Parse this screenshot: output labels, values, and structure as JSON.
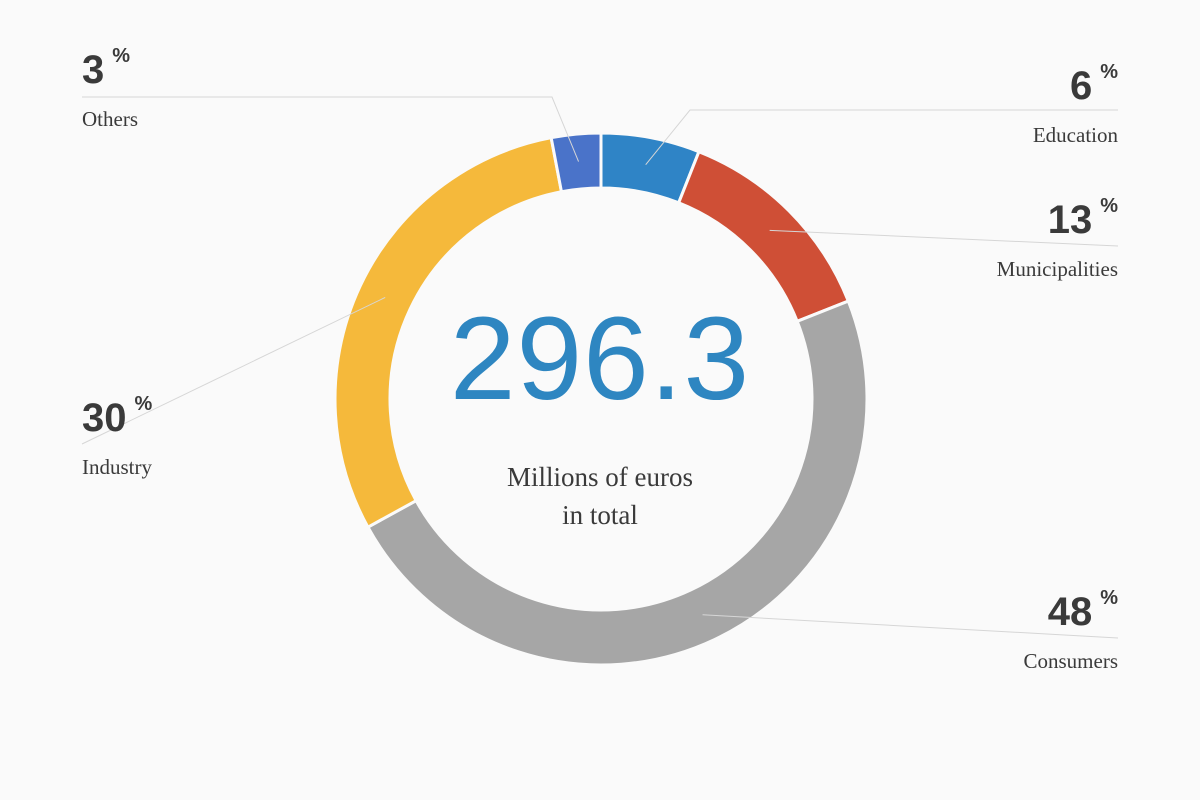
{
  "chart_data": {
    "type": "pie",
    "variant": "donut",
    "center": {
      "total": "296.3",
      "caption_line1": "Millions of euros",
      "caption_line2": "in total"
    },
    "unit": "%",
    "categories": [
      "Education",
      "Municipalities",
      "Consumers",
      "Industry",
      "Others"
    ],
    "values": [
      6,
      13,
      48,
      30,
      3
    ],
    "colors": [
      "#2f84c6",
      "#cf4f36",
      "#a6a6a6",
      "#f5b93b",
      "#4a73c9"
    ],
    "value_labels": [
      "6",
      "13",
      "48",
      "30",
      "3"
    ]
  }
}
